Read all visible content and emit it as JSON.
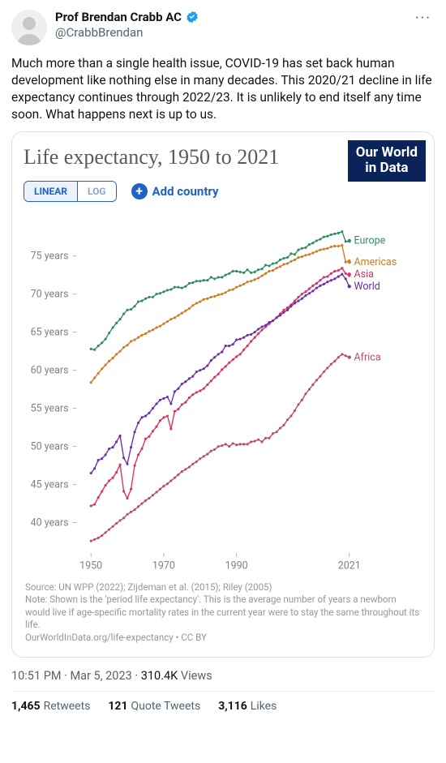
{
  "tweet": {
    "display_name": "Prof Brendan Crabb AC",
    "handle": "@CrabbBrendan",
    "body": "Much more than a single health issue, COVID-19 has set back human development like nothing else in many decades. This 2020/21 decline in life expectancy continues through 2022/23. It is unlikely to end itself any time soon. What happens next is up to us.",
    "time": "10:51 PM",
    "date": "Mar 5, 2023",
    "views": "310.4K",
    "views_label": "Views",
    "retweets": "1,465",
    "retweets_label": "Retweets",
    "quotes": "121",
    "quotes_label": "Quote Tweets",
    "likes": "3,116",
    "likes_label": "Likes"
  },
  "chart": {
    "type": "line",
    "title": "Life expectancy, 1950 to 2021",
    "logo_line1": "Our World",
    "logo_line2": "in Data",
    "logo_bg": "#0a2359",
    "scale_options": [
      "LINEAR",
      "LOG"
    ],
    "scale_active": "LINEAR",
    "add_country_label": "Add country",
    "accent_color": "#2063c5",
    "title_color": "#59595f",
    "title_fontsize": 26,
    "background_color": "#ffffff",
    "axis_color": "#808088",
    "axis_fontsize": 13,
    "tick_color": "#b5b5bb",
    "x_ticks": [
      1950,
      1970,
      1990,
      2021
    ],
    "x_min": 1946,
    "x_max": 2027,
    "y_unit": "years",
    "y_ticks": [
      40,
      45,
      50,
      55,
      60,
      65,
      70,
      75
    ],
    "y_min": 36,
    "y_max": 80,
    "line_width": 1.4,
    "marker_radius": 1.6,
    "series": [
      {
        "name": "Europe",
        "color": "#2f8a62",
        "label_y": 77,
        "values": [
          62.8,
          62.7,
          63.2,
          63.6,
          64.1,
          64.9,
          65.6,
          66.2,
          66.7,
          67.4,
          67.9,
          68.0,
          68.4,
          69.0,
          69.1,
          69.4,
          69.6,
          69.6,
          70.0,
          70.1,
          70.3,
          70.5,
          70.6,
          70.9,
          70.9,
          70.8,
          71.0,
          71.4,
          71.5,
          71.7,
          71.7,
          71.8,
          71.8,
          72.2,
          72.0,
          72.2,
          72.2,
          72.5,
          72.7,
          73.0,
          73.0,
          72.9,
          72.8,
          73.2,
          72.8,
          72.9,
          73.2,
          73.3,
          73.8,
          73.7,
          74.0,
          74.1,
          74.5,
          74.7,
          74.8,
          75.3,
          75.2,
          75.8,
          76.0,
          76.1,
          76.5,
          76.7,
          77.0,
          77.2,
          77.5,
          77.6,
          77.8,
          77.9,
          78.0,
          78.2,
          76.9,
          76.9
        ]
      },
      {
        "name": "Americas",
        "color": "#cf7b1e",
        "label_y": 74.2,
        "values": [
          58.4,
          59.0,
          59.6,
          60.2,
          60.7,
          61.2,
          61.6,
          62.1,
          62.5,
          63.0,
          63.3,
          63.8,
          64.0,
          64.3,
          64.6,
          64.8,
          65.1,
          65.3,
          65.6,
          65.8,
          66.1,
          66.4,
          66.7,
          66.9,
          67.2,
          67.5,
          67.8,
          68.1,
          68.5,
          68.8,
          69.0,
          69.3,
          69.4,
          69.6,
          69.7,
          69.9,
          70.0,
          70.2,
          70.5,
          70.6,
          70.9,
          71.1,
          71.3,
          71.6,
          71.7,
          71.9,
          72.1,
          72.4,
          72.7,
          73.0,
          73.1,
          73.4,
          73.6,
          73.9,
          74.0,
          74.3,
          74.5,
          74.8,
          74.9,
          75.1,
          75.2,
          75.4,
          75.6,
          75.8,
          75.9,
          76.0,
          76.2,
          76.3,
          76.3,
          76.4,
          74.2,
          74.4
        ]
      },
      {
        "name": "Asia",
        "color": "#d82f6a",
        "label_y": 72.6,
        "values": [
          42.2,
          42.4,
          43.3,
          44.1,
          44.9,
          45.5,
          45.9,
          46.6,
          47.6,
          44.1,
          43.2,
          44.4,
          47.5,
          48.9,
          49.7,
          51.0,
          51.3,
          52.0,
          52.6,
          53.4,
          53.8,
          54.0,
          52.3,
          54.6,
          54.9,
          55.5,
          55.8,
          56.4,
          56.8,
          57.1,
          57.3,
          57.6,
          58.1,
          58.6,
          59.1,
          59.5,
          60.1,
          60.5,
          61.0,
          61.4,
          61.8,
          62.1,
          62.7,
          63.2,
          63.8,
          64.3,
          64.8,
          65.3,
          65.7,
          66.1,
          66.5,
          66.9,
          67.4,
          67.9,
          68.2,
          68.6,
          69.1,
          69.6,
          70.0,
          70.3,
          70.7,
          71.1,
          71.4,
          71.8,
          72.2,
          72.3,
          72.7,
          73.0,
          73.1,
          73.4,
          72.7,
          72.4
        ]
      },
      {
        "name": "World",
        "color": "#6a2fa0",
        "label_y": 71.0,
        "values": [
          46.5,
          47.1,
          48.2,
          48.4,
          48.9,
          49.7,
          49.9,
          50.6,
          51.4,
          48.5,
          47.7,
          49.9,
          51.9,
          53.1,
          53.8,
          54.0,
          54.4,
          55.0,
          55.6,
          56.1,
          56.3,
          56.5,
          55.6,
          57.2,
          57.6,
          58.2,
          58.5,
          58.9,
          59.2,
          59.8,
          60.0,
          60.2,
          60.6,
          61.3,
          61.7,
          62.1,
          62.4,
          63.2,
          63.2,
          63.4,
          64.0,
          64.1,
          64.3,
          64.6,
          64.7,
          65.0,
          65.4,
          65.7,
          65.9,
          66.3,
          66.5,
          66.9,
          67.2,
          67.6,
          67.9,
          68.4,
          68.8,
          69.1,
          69.4,
          69.8,
          70.1,
          70.4,
          70.8,
          71.1,
          71.3,
          71.6,
          71.8,
          72.0,
          72.3,
          72.6,
          72.0,
          71.0
        ]
      },
      {
        "name": "Africa",
        "color": "#bb4d63",
        "label_y": 61.7,
        "values": [
          37.6,
          37.8,
          38.0,
          38.3,
          38.7,
          39.1,
          39.5,
          39.9,
          40.3,
          40.6,
          41.1,
          41.4,
          41.7,
          42.1,
          42.5,
          42.9,
          43.2,
          43.6,
          44.0,
          44.4,
          44.8,
          45.1,
          45.5,
          45.9,
          46.3,
          46.7,
          47.0,
          47.3,
          47.7,
          48.0,
          48.4,
          48.7,
          49.0,
          49.4,
          49.6,
          50.0,
          50.1,
          50.3,
          50.0,
          50.4,
          50.2,
          50.3,
          50.3,
          50.3,
          50.6,
          50.7,
          50.9,
          50.6,
          51.1,
          51.1,
          51.7,
          51.9,
          52.4,
          52.8,
          53.5,
          54.0,
          54.7,
          55.5,
          56.1,
          56.9,
          57.5,
          58.1,
          58.7,
          59.2,
          59.8,
          60.3,
          60.8,
          61.2,
          61.7,
          62.1,
          61.9,
          61.7
        ]
      }
    ],
    "source_line": "Source: UN WPP (2022); Zijdeman et al. (2015); Riley (2005)",
    "note_line": "Note: Shown is the 'period life expectancy'. This is the average number of years a newborn would live if age-specific mortality rates in the current year were to stay the same throughout its life.",
    "link_line": "OurWorldInData.org/life-expectancy • CC BY"
  }
}
